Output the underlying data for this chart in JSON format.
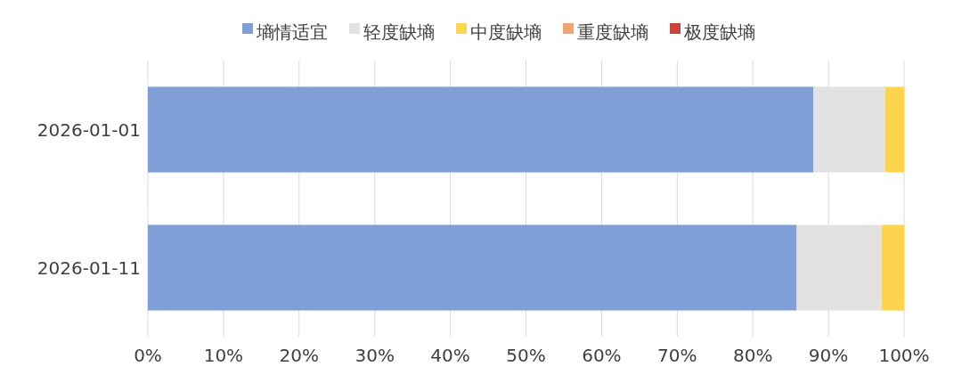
{
  "chart_data": {
    "type": "bar",
    "orientation": "horizontal",
    "stacked": true,
    "categories": [
      "2026-01-01",
      "2026-01-11"
    ],
    "series": [
      {
        "name": "墒情适宜",
        "color": "#7f9fd6",
        "values": [
          88.0,
          85.8
        ]
      },
      {
        "name": "轻度缺墒",
        "color": "#e2e2e2",
        "values": [
          9.5,
          11.2
        ]
      },
      {
        "name": "中度缺墒",
        "color": "#fed34e",
        "values": [
          2.5,
          3.0
        ]
      },
      {
        "name": "重度缺墒",
        "color": "#eea572",
        "values": [
          0,
          0
        ]
      },
      {
        "name": "极度缺墒",
        "color": "#c9443d",
        "values": [
          0,
          0
        ]
      }
    ],
    "xlim": [
      0,
      100
    ],
    "xticks": [
      {
        "value": 0,
        "label": "0%"
      },
      {
        "value": 10,
        "label": "10%"
      },
      {
        "value": 20,
        "label": "20%"
      },
      {
        "value": 30,
        "label": "30%"
      },
      {
        "value": 40,
        "label": "40%"
      },
      {
        "value": 50,
        "label": "50%"
      },
      {
        "value": 60,
        "label": "60%"
      },
      {
        "value": 70,
        "label": "70%"
      },
      {
        "value": 80,
        "label": "80%"
      },
      {
        "value": 90,
        "label": "90%"
      },
      {
        "value": 100,
        "label": "100%"
      }
    ],
    "grid": "x",
    "legend": "top"
  }
}
